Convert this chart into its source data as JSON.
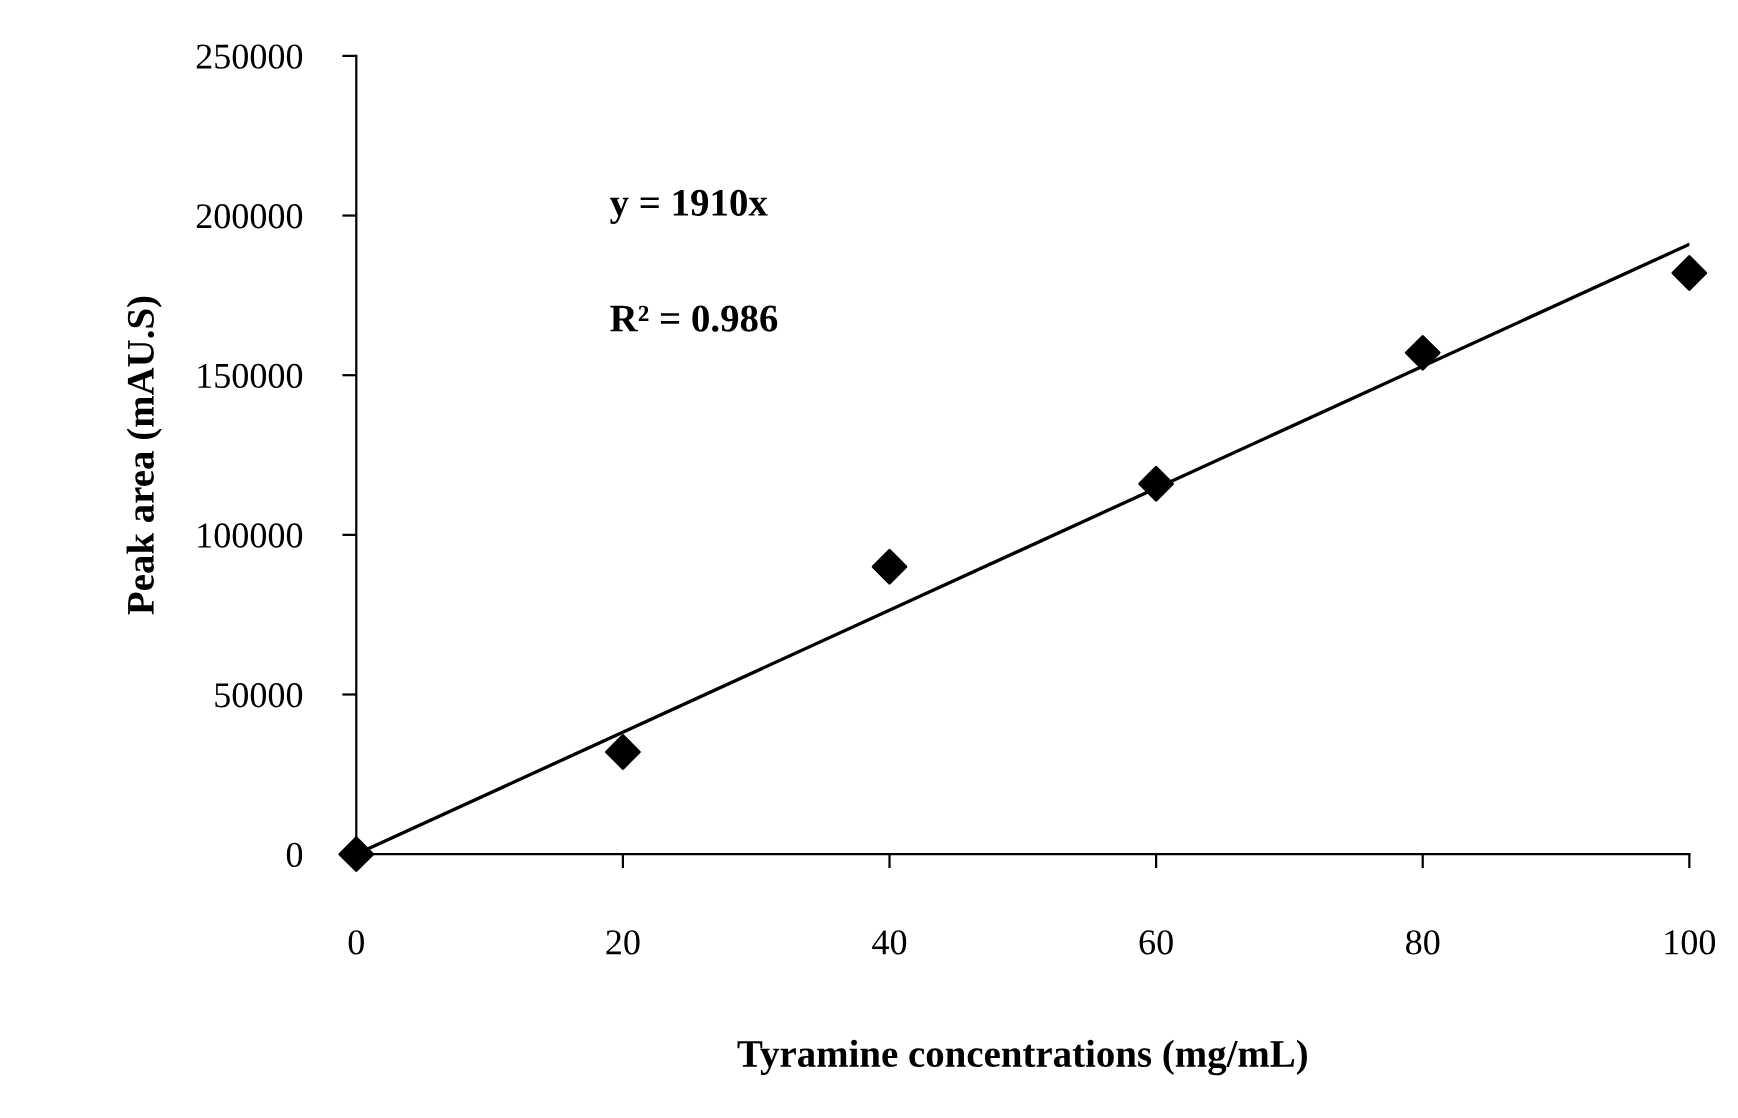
{
  "chart_data": {
    "type": "scatter",
    "xlabel": "Tyramine concentrations (mg/mL)",
    "ylabel": "Peak area (mAU.S)",
    "annotations": [
      "y = 1910x",
      "R² = 0.986"
    ],
    "x": [
      0,
      20,
      40,
      60,
      80,
      100
    ],
    "series": [
      {
        "color": "#000000",
        "marker": "diamond",
        "values": [
          0,
          32000,
          90000,
          116000,
          157000,
          182000
        ]
      },
      {
        "type": "line",
        "color": "#000000",
        "marker": "none",
        "line_style": "solid",
        "x": [
          0,
          100
        ],
        "values": [
          0,
          191000
        ]
      }
    ],
    "xlim": [
      0,
      100
    ],
    "xticks": [
      0,
      20,
      40,
      60,
      80,
      100
    ],
    "ylim": [
      0,
      250000
    ],
    "yticks": [
      0,
      50000,
      100000,
      150000,
      200000,
      250000
    ],
    "grid": false,
    "legend": false
  }
}
